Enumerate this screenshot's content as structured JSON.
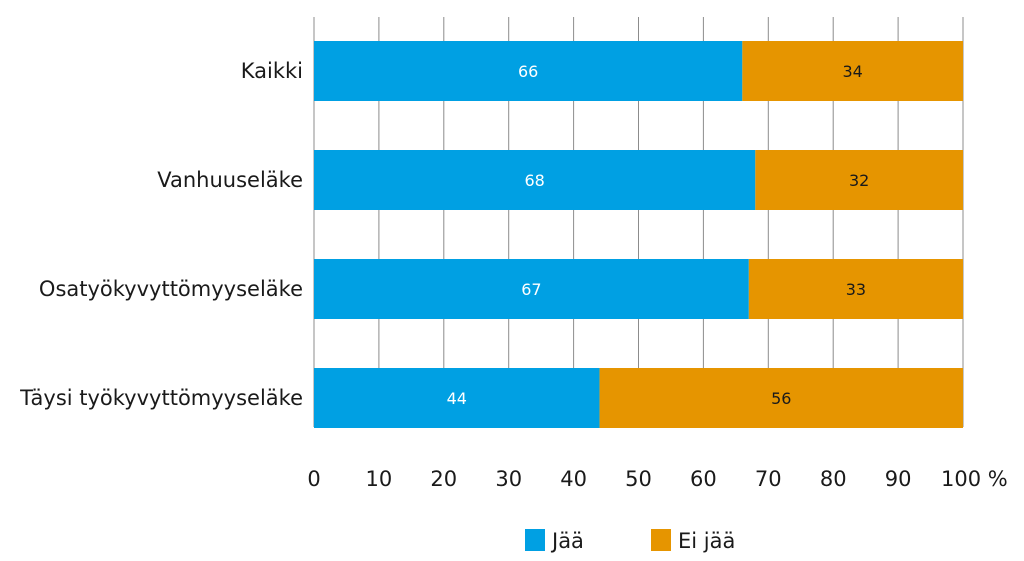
{
  "chart_data": {
    "type": "bar",
    "orientation": "horizontal",
    "stacked": true,
    "categories": [
      "Kaikki",
      "Vanhuuseläke",
      "Osatyökyvyttömyyseläke",
      "Täysi työkyvyttömyyseläke"
    ],
    "series": [
      {
        "name": "Jää",
        "values": [
          66,
          68,
          67,
          44
        ],
        "color": "#00a0e3"
      },
      {
        "name": "Ei jää",
        "values": [
          34,
          32,
          33,
          56
        ],
        "color": "#e69500"
      }
    ],
    "xlim": [
      0,
      100
    ],
    "x_ticks": [
      "0",
      "10",
      "20",
      "30",
      "40",
      "50",
      "60",
      "70",
      "80",
      "90",
      "100 %"
    ],
    "grid": "vertical",
    "legend": "bottom-center"
  }
}
